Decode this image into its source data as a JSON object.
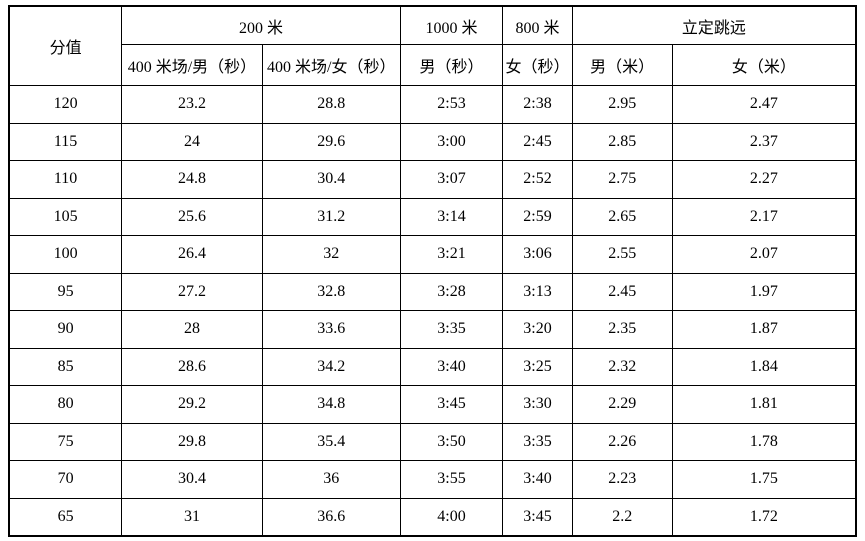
{
  "table": {
    "header": {
      "score": "分值",
      "col_200m": "200 米",
      "col_1000m": "1000 米",
      "col_800m": "800 米",
      "col_jump": "立定跳远",
      "sub_400m_male": "400 米场/男（秒）",
      "sub_400m_female": "400 米场/女（秒）",
      "sub_male_sec": "男（秒）",
      "sub_female_sec": "女（秒）",
      "sub_male_m": "男（米）",
      "sub_female_m": "女（米）"
    },
    "rows": [
      [
        "120",
        "23.2",
        "28.8",
        "2:53",
        "2:38",
        "2.95",
        "2.47"
      ],
      [
        "115",
        "24",
        "29.6",
        "3:00",
        "2:45",
        "2.85",
        "2.37"
      ],
      [
        "110",
        "24.8",
        "30.4",
        "3:07",
        "2:52",
        "2.75",
        "2.27"
      ],
      [
        "105",
        "25.6",
        "31.2",
        "3:14",
        "2:59",
        "2.65",
        "2.17"
      ],
      [
        "100",
        "26.4",
        "32",
        "3:21",
        "3:06",
        "2.55",
        "2.07"
      ],
      [
        "95",
        "27.2",
        "32.8",
        "3:28",
        "3:13",
        "2.45",
        "1.97"
      ],
      [
        "90",
        "28",
        "33.6",
        "3:35",
        "3:20",
        "2.35",
        "1.87"
      ],
      [
        "85",
        "28.6",
        "34.2",
        "3:40",
        "3:25",
        "2.32",
        "1.84"
      ],
      [
        "80",
        "29.2",
        "34.8",
        "3:45",
        "3:30",
        "2.29",
        "1.81"
      ],
      [
        "75",
        "29.8",
        "35.4",
        "3:50",
        "3:35",
        "2.26",
        "1.78"
      ],
      [
        "70",
        "30.4",
        "36",
        "3:55",
        "3:40",
        "2.23",
        "1.75"
      ],
      [
        "65",
        "31",
        "36.6",
        "4:00",
        "3:45",
        "2.2",
        "1.72"
      ]
    ]
  }
}
